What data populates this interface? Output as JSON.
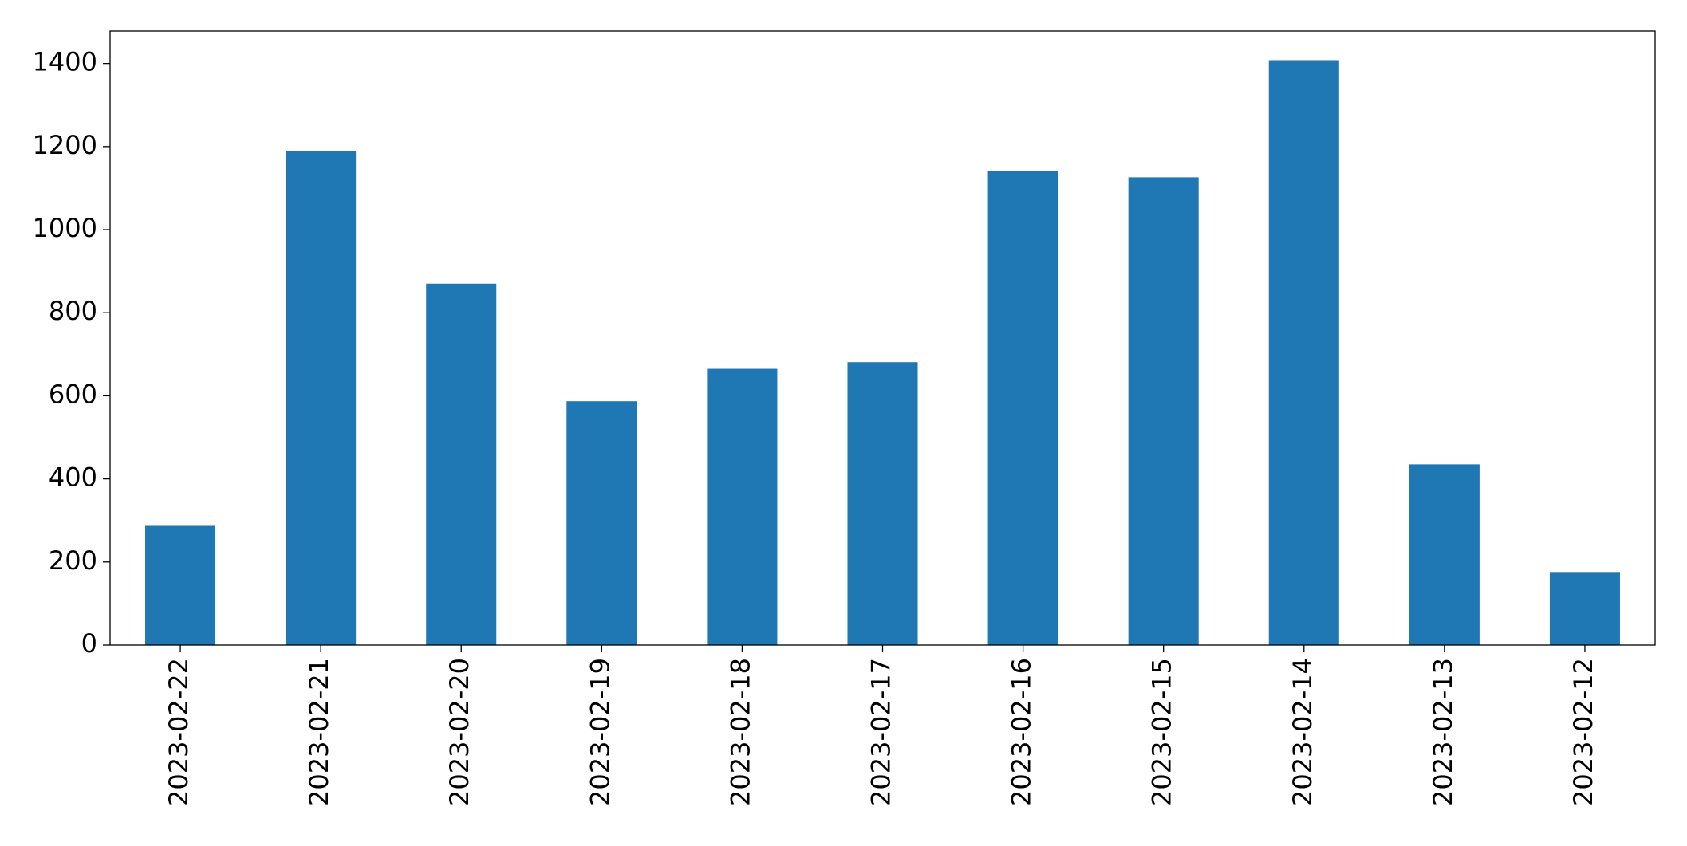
{
  "chart_data": {
    "type": "bar",
    "categories": [
      "2023-02-22",
      "2023-02-21",
      "2023-02-20",
      "2023-02-19",
      "2023-02-18",
      "2023-02-17",
      "2023-02-16",
      "2023-02-15",
      "2023-02-14",
      "2023-02-13",
      "2023-02-12"
    ],
    "values": [
      287,
      1190,
      870,
      587,
      665,
      681,
      1141,
      1126,
      1408,
      435,
      176
    ],
    "color": "#1f77b4",
    "ylim": [
      0,
      1478
    ],
    "yticks": [
      0,
      200,
      400,
      600,
      800,
      1000,
      1200,
      1400
    ],
    "grid": false
  }
}
